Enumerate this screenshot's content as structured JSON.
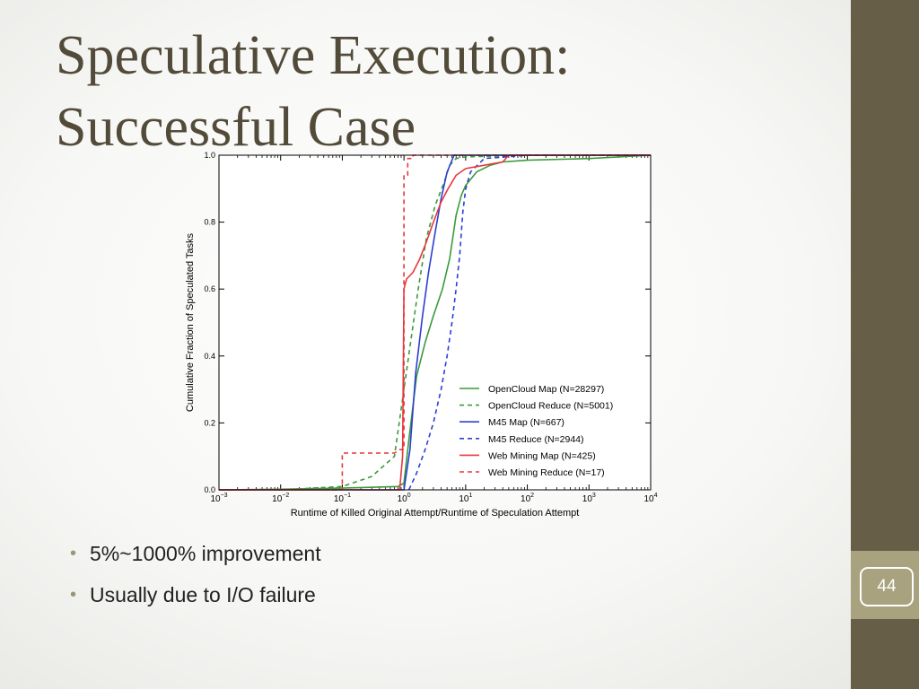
{
  "slide": {
    "title_lines": [
      "Speculative Execution:",
      "Successful Case"
    ],
    "bullets": [
      "5%~1000% improvement",
      "Usually due to I/O failure"
    ],
    "page_number": "44",
    "colors": {
      "sidebar": "#675e47",
      "page_tab": "#a8a27f",
      "title": "#534b39"
    }
  },
  "chart_data": {
    "type": "line",
    "xlabel": "Runtime of Killed Original Attempt/Runtime of Speculation Attempt",
    "ylabel": "Cumulative Fraction of Speculated Tasks",
    "x_scale": "log",
    "xlim": [
      0.001,
      10000
    ],
    "ylim": [
      0,
      1
    ],
    "x_ticks": [
      {
        "value": 0.001,
        "base": "10",
        "exp": "−3"
      },
      {
        "value": 0.01,
        "base": "10",
        "exp": "−2"
      },
      {
        "value": 0.1,
        "base": "10",
        "exp": "−1"
      },
      {
        "value": 1,
        "base": "10",
        "exp": "0"
      },
      {
        "value": 10,
        "base": "10",
        "exp": "1"
      },
      {
        "value": 100,
        "base": "10",
        "exp": "2"
      },
      {
        "value": 1000,
        "base": "10",
        "exp": "3"
      },
      {
        "value": 10000,
        "base": "10",
        "exp": "4"
      }
    ],
    "y_ticks": [
      {
        "value": 0.0,
        "label": "0.0"
      },
      {
        "value": 0.2,
        "label": "0.2"
      },
      {
        "value": 0.4,
        "label": "0.4"
      },
      {
        "value": 0.6,
        "label": "0.6"
      },
      {
        "value": 0.8,
        "label": "0.8"
      },
      {
        "value": 1.0,
        "label": "1.0"
      }
    ],
    "grid": false,
    "legend_position": "lower-right",
    "series": [
      {
        "name": "OpenCloud Map (N=28297)",
        "color": "#3a9a3a",
        "dash": "solid",
        "x": [
          0.001,
          0.01,
          0.1,
          0.8,
          1.0,
          1.2,
          1.6,
          2.2,
          3.0,
          4.2,
          5.5,
          7.0,
          8.5,
          10,
          15,
          25,
          40,
          100,
          1000,
          10000
        ],
        "y": [
          0.0,
          0.002,
          0.005,
          0.01,
          0.02,
          0.15,
          0.34,
          0.44,
          0.52,
          0.6,
          0.69,
          0.82,
          0.88,
          0.91,
          0.95,
          0.97,
          0.98,
          0.985,
          0.99,
          1.0
        ]
      },
      {
        "name": "OpenCloud Reduce (N=5001)",
        "color": "#3a9a3a",
        "dash": "dashed",
        "x": [
          0.01,
          0.1,
          0.3,
          0.7,
          1.0,
          1.3,
          1.7,
          2.3,
          3.2,
          4.5,
          5.5,
          7.0,
          10,
          100,
          10000
        ],
        "y": [
          0.0,
          0.01,
          0.04,
          0.1,
          0.3,
          0.45,
          0.6,
          0.75,
          0.85,
          0.92,
          0.97,
          0.99,
          0.995,
          1.0,
          1.0
        ]
      },
      {
        "name": "M45 Map (N=667)",
        "color": "#2b3fd1",
        "dash": "solid",
        "x": [
          0.001,
          0.7,
          1.0,
          1.25,
          1.55,
          2.0,
          2.5,
          3.2,
          4.0,
          5.0,
          6.5,
          10,
          100,
          10000
        ],
        "y": [
          0.0,
          0.0,
          0.0,
          0.12,
          0.35,
          0.52,
          0.65,
          0.77,
          0.87,
          0.95,
          1.0,
          1.0,
          1.0,
          1.0
        ]
      },
      {
        "name": "M45 Reduce (N=2944)",
        "color": "#2b3fd1",
        "dash": "dashed",
        "x": [
          1.2,
          1.6,
          2.2,
          3.0,
          4.0,
          5.0,
          6.0,
          7.0,
          8.0,
          9.0,
          10,
          12,
          20,
          100,
          10000
        ],
        "y": [
          0.0,
          0.05,
          0.12,
          0.2,
          0.3,
          0.4,
          0.5,
          0.6,
          0.7,
          0.83,
          0.9,
          0.95,
          0.99,
          1.0,
          1.0
        ]
      },
      {
        "name": "Web Mining Map (N=425)",
        "color": "#e8373d",
        "dash": "solid",
        "x": [
          0.001,
          0.85,
          0.95,
          1.0,
          1.1,
          1.4,
          1.8,
          2.3,
          3.0,
          4.0,
          5.2,
          7.0,
          10,
          20,
          40,
          50,
          100,
          10000
        ],
        "y": [
          0.0,
          0.0,
          0.1,
          0.6,
          0.63,
          0.65,
          0.69,
          0.74,
          0.8,
          0.86,
          0.9,
          0.94,
          0.96,
          0.97,
          0.98,
          1.0,
          1.0,
          1.0
        ]
      },
      {
        "name": "Web Mining Reduce (N=17)",
        "color": "#e8373d",
        "dash": "dashed",
        "x": [
          0.001,
          0.1,
          0.1,
          0.7,
          0.85,
          1.0,
          1.0,
          1.15,
          1.15,
          1.4,
          1.4,
          10000
        ],
        "y": [
          0.0,
          0.0,
          0.11,
          0.11,
          0.12,
          0.12,
          0.94,
          0.94,
          0.99,
          0.99,
          1.0,
          1.0
        ]
      }
    ]
  }
}
